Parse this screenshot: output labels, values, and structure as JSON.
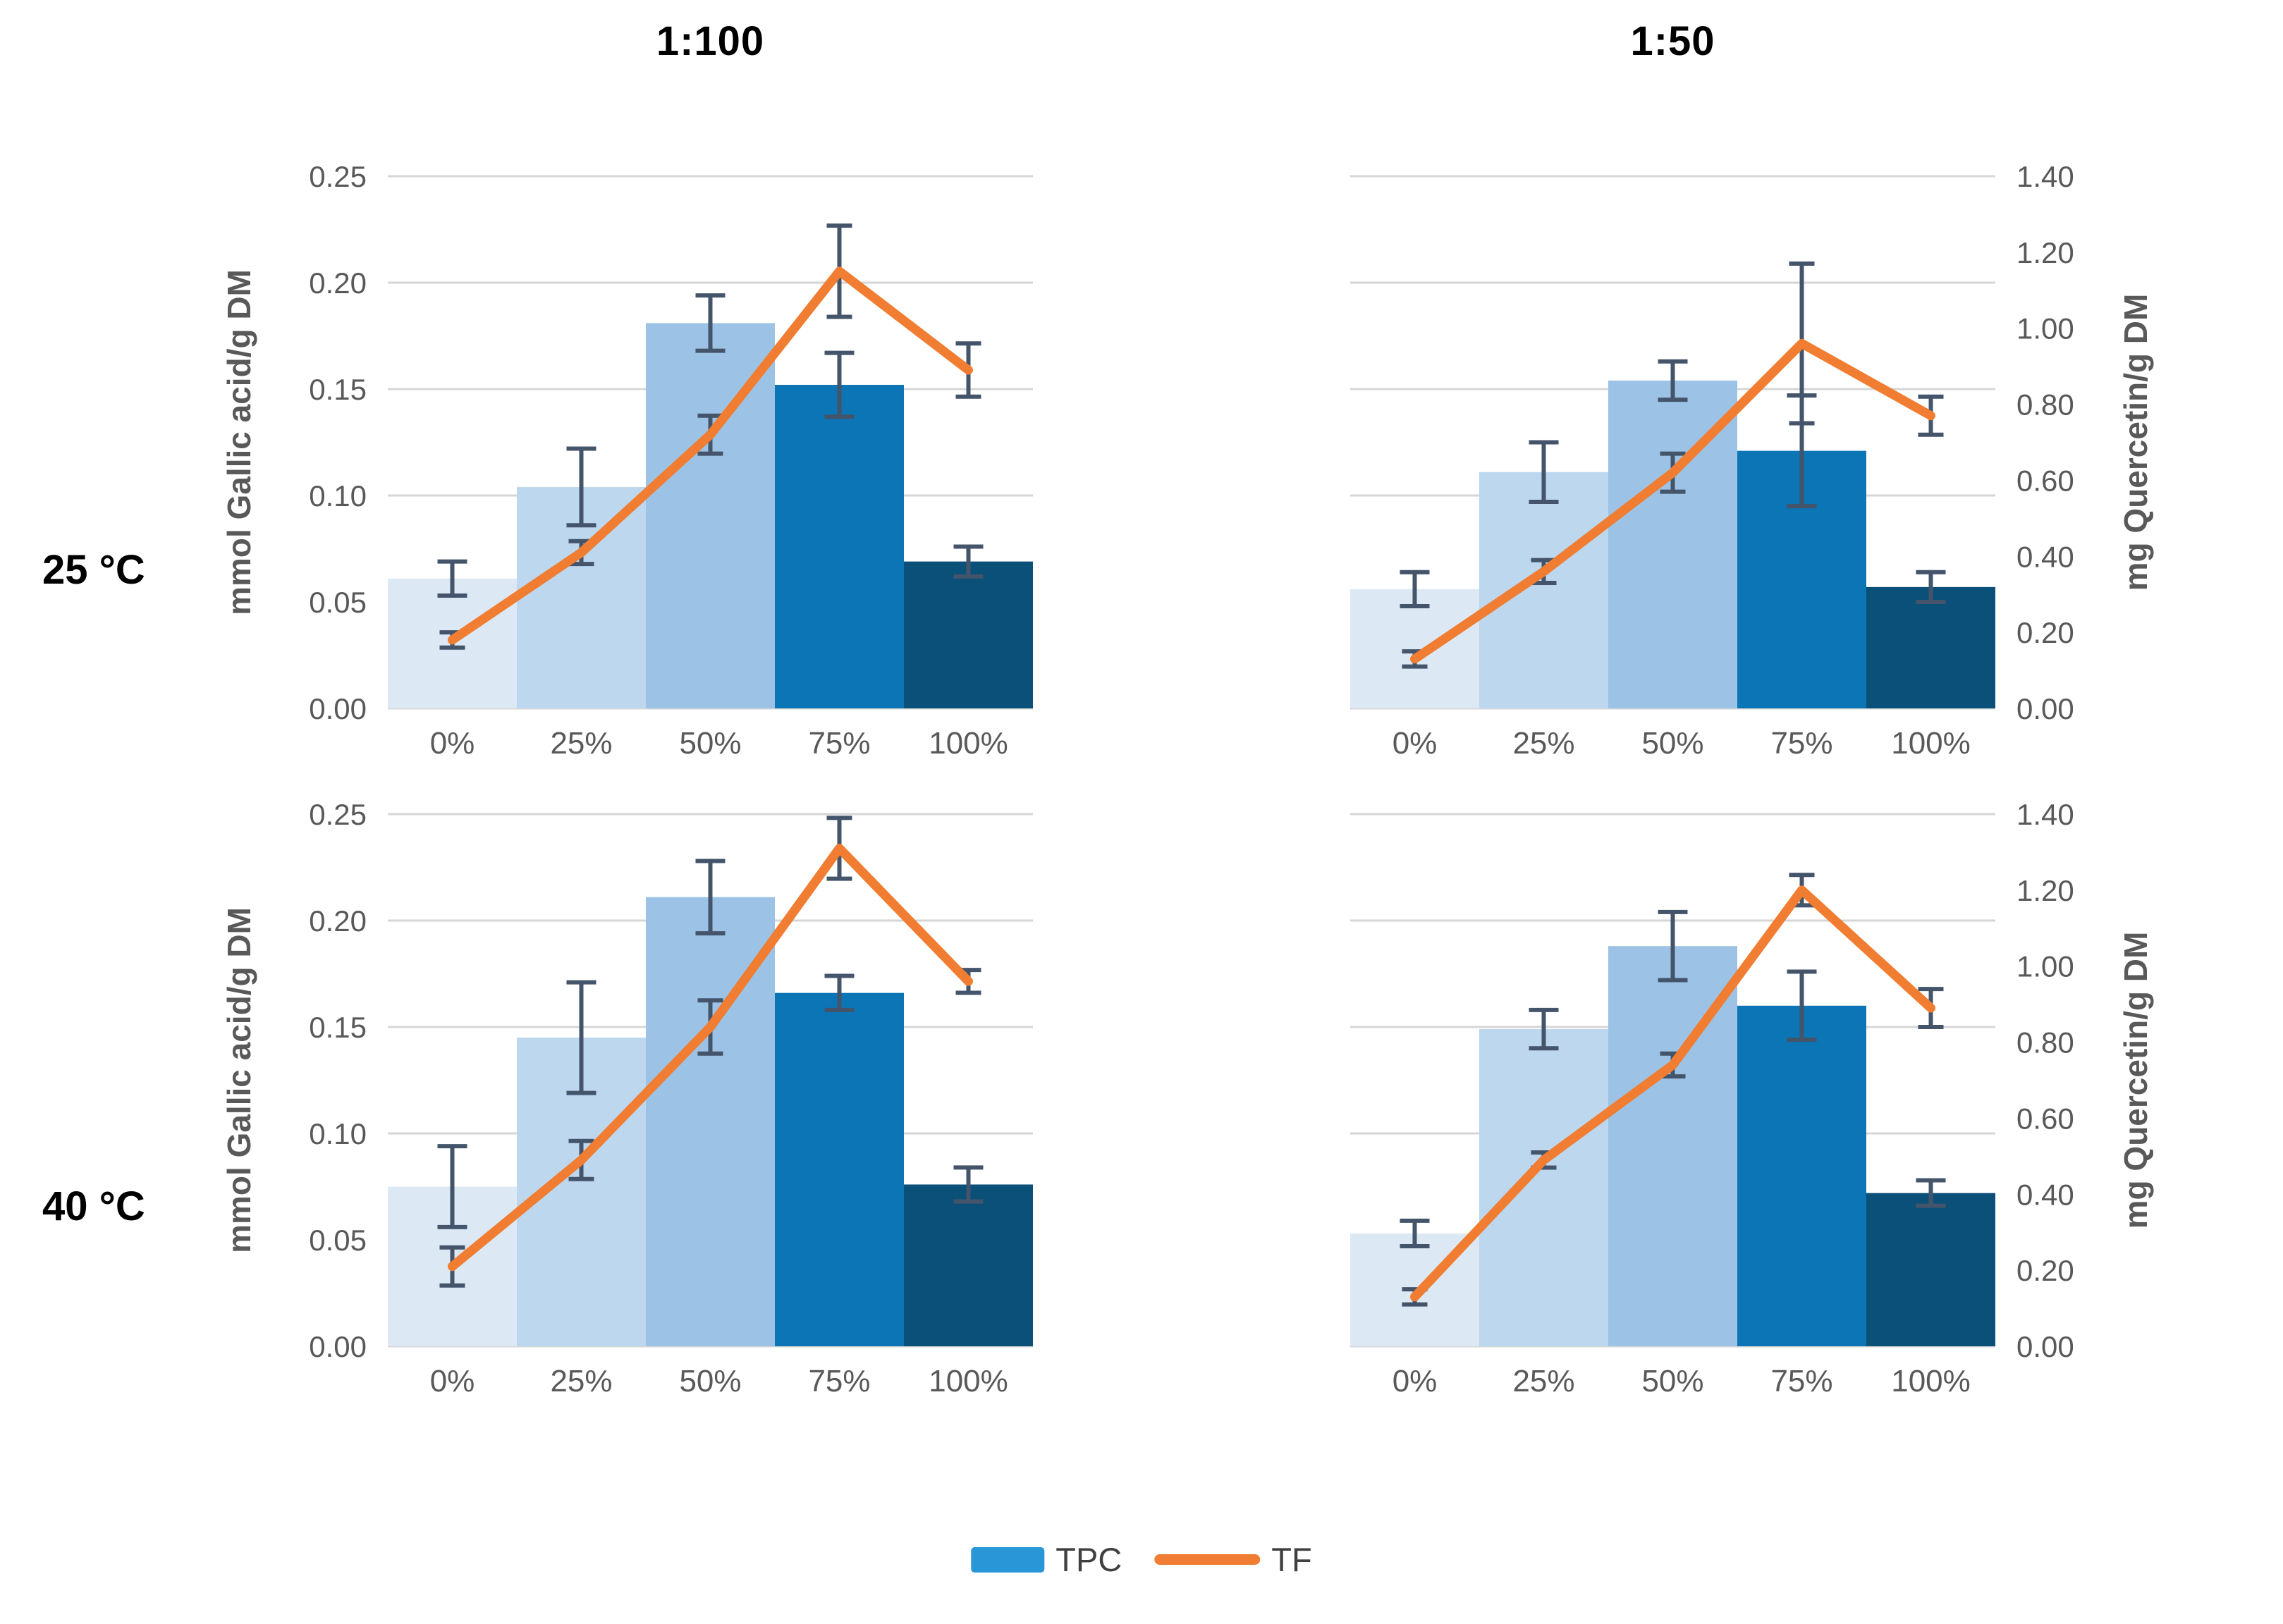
{
  "figure": {
    "column_titles": [
      "1:100",
      "1:50"
    ],
    "row_labels": [
      "25 °C",
      "40 °C"
    ],
    "legend": {
      "items": [
        {
          "label": "TPC",
          "series_type": "bar"
        },
        {
          "label": "TF",
          "series_type": "line"
        }
      ]
    }
  },
  "colors": {
    "bar_shades": [
      "#DCE9F5",
      "#BDD7EE",
      "#9CC3E5",
      "#0C75B5",
      "#0A5078"
    ],
    "line": "#F07D31",
    "error_bar": "#44546A",
    "gridline": "#D6D6D6",
    "tick_text": "#595959",
    "axis_title_text": "#595959",
    "heading_text": "#000000",
    "legend_text": "#404040",
    "legend_bar_swatch": "#2996D8"
  },
  "chart_data": [
    {
      "id": "25C-1to100",
      "type": "bar+line",
      "temperature": "25 °C",
      "ratio": "1:100",
      "categories": [
        "0%",
        "25%",
        "50%",
        "75%",
        "100%"
      ],
      "grid": "horizontal",
      "left_axis": {
        "title": "mmol Gallic acid/g DM",
        "min": 0,
        "max": 0.25,
        "step": 0.05,
        "tick_labels_visible": true
      },
      "right_axis": {
        "title": "mg Quercetin/g DM",
        "min": 0,
        "max": 1.4,
        "step": 0.2,
        "tick_labels_visible": false
      },
      "series": [
        {
          "name": "TPC",
          "type": "bar",
          "axis": "left",
          "values": [
            0.061,
            0.104,
            0.181,
            0.152,
            0.069
          ],
          "errors": [
            0.008,
            0.018,
            0.013,
            0.015,
            0.007
          ]
        },
        {
          "name": "TF",
          "type": "line",
          "axis": "right",
          "values": [
            0.18,
            0.41,
            0.72,
            1.15,
            0.89
          ],
          "errors": [
            0.02,
            0.03,
            0.05,
            0.12,
            0.07
          ]
        }
      ]
    },
    {
      "id": "25C-1to50",
      "type": "bar+line",
      "temperature": "25 °C",
      "ratio": "1:50",
      "categories": [
        "0%",
        "25%",
        "50%",
        "75%",
        "100%"
      ],
      "grid": "horizontal",
      "left_axis": {
        "title": "mmol Gallic acid/g DM",
        "min": 0,
        "max": 0.25,
        "step": 0.05,
        "tick_labels_visible": false
      },
      "right_axis": {
        "title": "mg Quercetin/g DM",
        "min": 0,
        "max": 1.4,
        "step": 0.2,
        "tick_labels_visible": true
      },
      "series": [
        {
          "name": "TPC",
          "type": "bar",
          "axis": "left",
          "values": [
            0.056,
            0.111,
            0.154,
            0.121,
            0.057
          ],
          "errors": [
            0.008,
            0.014,
            0.009,
            0.026,
            0.007
          ]
        },
        {
          "name": "TF",
          "type": "line",
          "axis": "right",
          "values": [
            0.13,
            0.36,
            0.62,
            0.96,
            0.77
          ],
          "errors": [
            0.02,
            0.03,
            0.05,
            0.21,
            0.05
          ]
        }
      ]
    },
    {
      "id": "40C-1to100",
      "type": "bar+line",
      "temperature": "40 °C",
      "ratio": "1:100",
      "categories": [
        "0%",
        "25%",
        "50%",
        "75%",
        "100%"
      ],
      "grid": "horizontal",
      "left_axis": {
        "title": "mmol Gallic acid/g DM",
        "min": 0,
        "max": 0.25,
        "step": 0.05,
        "tick_labels_visible": true
      },
      "right_axis": {
        "title": "mg Quercetin/g DM",
        "min": 0,
        "max": 1.4,
        "step": 0.2,
        "tick_labels_visible": false
      },
      "series": [
        {
          "name": "TPC",
          "type": "bar",
          "axis": "left",
          "values": [
            0.075,
            0.145,
            0.211,
            0.166,
            0.076
          ],
          "errors": [
            0.019,
            0.026,
            0.017,
            0.008,
            0.008
          ]
        },
        {
          "name": "TF",
          "type": "line",
          "axis": "right",
          "values": [
            0.21,
            0.49,
            0.84,
            1.31,
            0.96
          ],
          "errors": [
            0.05,
            0.05,
            0.07,
            0.08,
            0.03
          ]
        }
      ]
    },
    {
      "id": "40C-1to50",
      "type": "bar+line",
      "temperature": "40 °C",
      "ratio": "1:50",
      "categories": [
        "0%",
        "25%",
        "50%",
        "75%",
        "100%"
      ],
      "grid": "horizontal",
      "left_axis": {
        "title": "mmol Gallic acid/g DM",
        "min": 0,
        "max": 0.25,
        "step": 0.05,
        "tick_labels_visible": false
      },
      "right_axis": {
        "title": "mg Quercetin/g DM",
        "min": 0,
        "max": 1.4,
        "step": 0.2,
        "tick_labels_visible": true
      },
      "series": [
        {
          "name": "TPC",
          "type": "bar",
          "axis": "left",
          "values": [
            0.053,
            0.149,
            0.188,
            0.16,
            0.072
          ],
          "errors": [
            0.006,
            0.009,
            0.016,
            0.016,
            0.006
          ]
        },
        {
          "name": "TF",
          "type": "line",
          "axis": "right",
          "values": [
            0.13,
            0.49,
            0.74,
            1.2,
            0.89
          ],
          "errors": [
            0.02,
            0.02,
            0.03,
            0.04,
            0.05
          ]
        }
      ]
    }
  ]
}
